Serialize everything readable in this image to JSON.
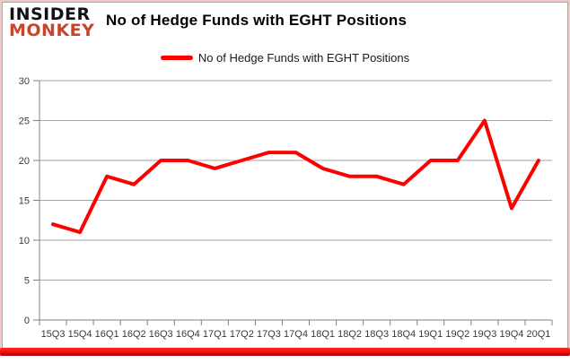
{
  "brand": {
    "line1": "INSIDER",
    "line2": "MONKEY"
  },
  "header": {
    "title": "No of Hedge Funds with EGHT Positions"
  },
  "legend": {
    "label": "No of Hedge Funds with EGHT Positions"
  },
  "colors": {
    "series_line": "#fe0000",
    "brand_accent": "#c7452c",
    "grid": "#a6a6a6",
    "axis": "#808080",
    "tick_label": "#3a3a3a",
    "bottom_bar_top": "#ff2a1a",
    "bottom_bar_bottom": "#a80000"
  },
  "chart_data": {
    "type": "line",
    "title": "No of Hedge Funds with EGHT Positions",
    "categories": [
      "15Q3",
      "15Q4",
      "16Q1",
      "16Q2",
      "16Q3",
      "16Q4",
      "17Q1",
      "17Q2",
      "17Q3",
      "17Q4",
      "18Q1",
      "18Q2",
      "18Q3",
      "18Q4",
      "19Q1",
      "19Q2",
      "19Q3",
      "19Q4",
      "20Q1"
    ],
    "series": [
      {
        "name": "No of Hedge Funds with EGHT Positions",
        "values": [
          12,
          11,
          18,
          17,
          20,
          20,
          19,
          20,
          21,
          21,
          19,
          18,
          18,
          17,
          20,
          20,
          25,
          14,
          20
        ]
      }
    ],
    "xlabel": "",
    "ylabel": "",
    "ylim": [
      0,
      30
    ],
    "yticks": [
      0,
      5,
      10,
      15,
      20,
      25,
      30
    ],
    "grid": "horizontal",
    "legend_position": "top-center"
  }
}
